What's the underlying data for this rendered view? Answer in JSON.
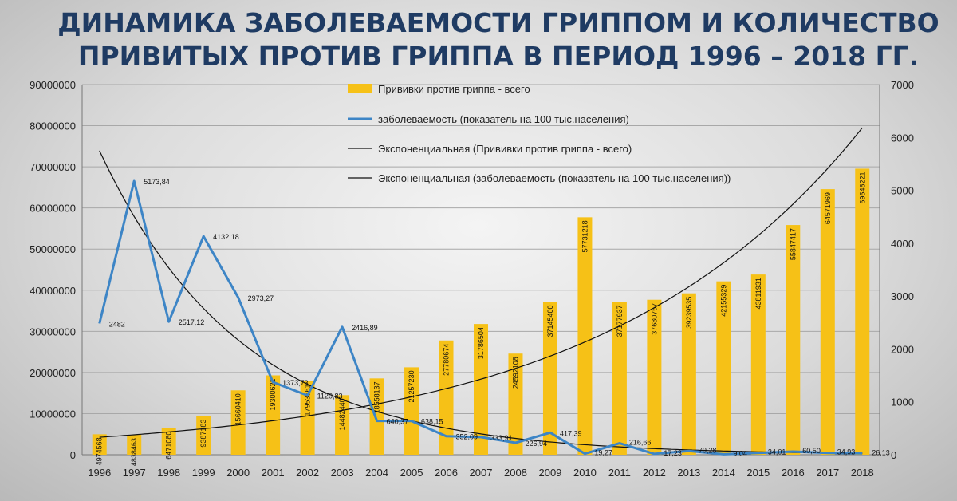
{
  "chart_data": {
    "type": "bar",
    "title_line1": "ДИНАМИКА ЗАБОЛЕВАЕМОСТИ ГРИППОМ И КОЛИЧЕСТВО",
    "title_line2": "ПРИВИТЫХ ПРОТИВ ГРИППА В ПЕРИОД 1996 – 2018 ГГ.",
    "categories": [
      "1996",
      "1997",
      "1998",
      "1999",
      "2000",
      "2001",
      "2002",
      "2003",
      "2004",
      "2005",
      "2006",
      "2007",
      "2008",
      "2009",
      "2010",
      "2011",
      "2012",
      "2013",
      "2014",
      "2015",
      "2016",
      "2017",
      "2018"
    ],
    "y_left": {
      "min": 0,
      "max": 90000000,
      "ticks": [
        "0",
        "10000000",
        "20000000",
        "30000000",
        "40000000",
        "50000000",
        "60000000",
        "70000000",
        "80000000",
        "90000000"
      ]
    },
    "y_right": {
      "min": 0,
      "max": 7000,
      "ticks": [
        "0",
        "1000",
        "2000",
        "3000",
        "4000",
        "5000",
        "6000",
        "7000"
      ]
    },
    "series": [
      {
        "name": "Прививки против гриппа - всего",
        "axis": "left",
        "kind": "bar",
        "color": "#f6c117",
        "values": [
          4974568,
          4838463,
          6471080,
          9387183,
          15660410,
          19300621,
          17953561,
          14482440,
          18558137,
          21257230,
          27780674,
          31786504,
          24592108,
          37145400,
          57731218,
          37177937,
          37680757,
          39239535,
          42155329,
          43811931,
          55847417,
          64571969,
          69548221
        ],
        "labels": [
          "4974568",
          "4838463",
          "6471080",
          "9387183",
          "15660410",
          "19300621",
          "17953561",
          "14482440",
          "18558137",
          "21257230",
          "27780674",
          "31786504",
          "24592108",
          "37145400",
          "57731218",
          "37177937",
          "37680757",
          "39239535",
          "42155329",
          "43811931",
          "55847417",
          "64571969",
          "69548221"
        ]
      },
      {
        "name": "заболеваемость (показатель на 100 тыс.населения)",
        "axis": "right",
        "kind": "line",
        "color": "#3d85c6",
        "values": [
          2482,
          5173.84,
          2517.12,
          4132.18,
          2973.27,
          1373.73,
          1120.83,
          2416.89,
          640.37,
          638.15,
          352.09,
          333.91,
          226.94,
          417.39,
          19.27,
          216.66,
          17.23,
          70.28,
          9.04,
          34.01,
          60.5,
          34.93,
          26.13
        ],
        "labels": [
          "2482",
          "5173,84",
          "2517,12",
          "4132,18",
          "2973,27",
          "1373,73",
          "1120,83",
          "2416,89",
          "640,37",
          "638,15",
          "352,09",
          "333,91",
          "226,94",
          "417,39",
          "19,27",
          "216,66",
          "17,23",
          "70,28",
          "9,04",
          "34,01",
          "60,50",
          "34,93",
          "26,13"
        ]
      }
    ],
    "trendlines": [
      {
        "name": "Экспоненциальная (Прививки против гриппа - всего)",
        "axis": "left",
        "color": "#111111",
        "start": 4250000,
        "end": 79500000
      },
      {
        "name": "Экспоненциальная (заболеваемость (показатель на 100 тыс.населения))",
        "axis": "right",
        "color": "#111111",
        "start": 5750,
        "end": 27
      }
    ],
    "legend_position": "top",
    "grid": true
  }
}
